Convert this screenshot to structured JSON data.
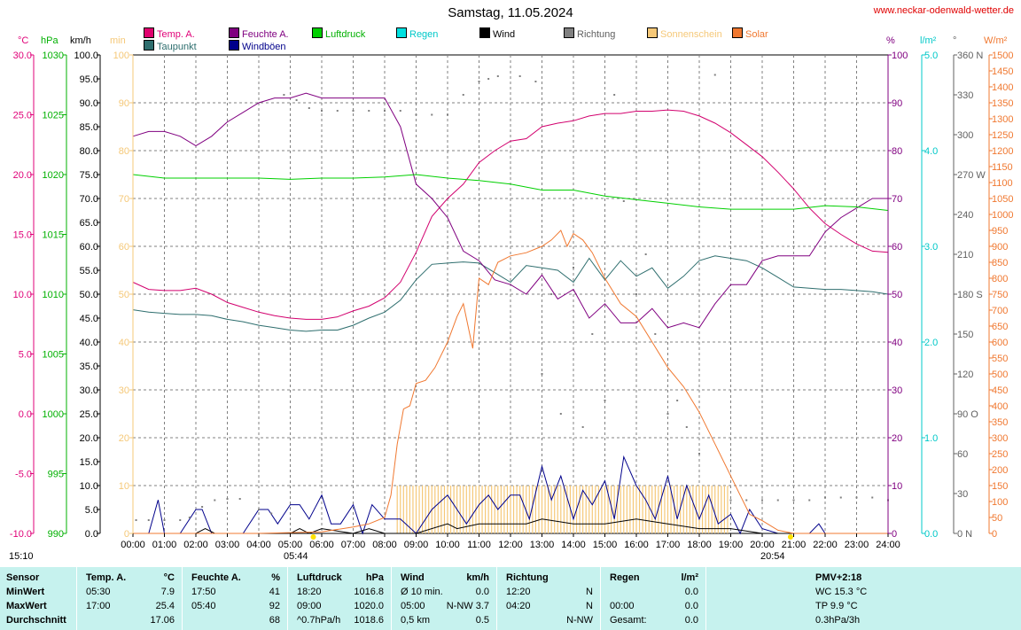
{
  "title": "Samstag, 11.05.2024",
  "site": "www.neckar-odenwald-wetter.de",
  "colors": {
    "temp": "#d2006e",
    "dew": "#2e6e6e",
    "humidity": "#800080",
    "gust": "#00008b",
    "pressure": "#00d000",
    "rain": "#00e0e0",
    "wind": "#000000",
    "direction": "#808080",
    "sunshine": "#f5c878",
    "solar": "#f07830",
    "grid": "#808080",
    "footer_bg": "#c6f2ee"
  },
  "legend": [
    {
      "label": "Temp. A.",
      "color": "#e0006e",
      "name": "legend-temp"
    },
    {
      "label": "Taupunkt",
      "color": "#2e6e6e",
      "name": "legend-dewpoint"
    },
    {
      "label": "Feuchte A.",
      "color": "#800080",
      "name": "legend-humidity"
    },
    {
      "label": "Windböen",
      "color": "#00008b",
      "name": "legend-gust"
    },
    {
      "label": "Luftdruck",
      "color": "#00d000",
      "name": "legend-pressure"
    },
    {
      "label": "Regen",
      "color": "#00e0e0",
      "name": "legend-rain"
    },
    {
      "label": "Wind",
      "color": "#000000",
      "name": "legend-wind"
    },
    {
      "label": "Richtung",
      "color": "#808080",
      "name": "legend-direction"
    },
    {
      "label": "Sonnenschein",
      "color": "#f5c878",
      "name": "legend-sunshine"
    },
    {
      "label": "Solar",
      "color": "#f07830",
      "name": "legend-solar"
    }
  ],
  "axis_headers": {
    "temp": "°C",
    "pressure": "hPa",
    "wind": "km/h",
    "sun": "min",
    "humidity": "%",
    "rain": "l/m²",
    "direction": "°",
    "solar": "W/m²"
  },
  "sun": {
    "sunrise": "05:44",
    "sunset": "20:54",
    "daylength": "15:10"
  },
  "chart_data": {
    "type": "line",
    "title": "Samstag, 11.05.2024",
    "x_label": "",
    "x_ticks": [
      "00:00",
      "01:00",
      "02:00",
      "03:00",
      "04:00",
      "05:00",
      "06:00",
      "07:00",
      "08:00",
      "09:00",
      "10:00",
      "11:00",
      "12:00",
      "13:00",
      "14:00",
      "15:00",
      "16:00",
      "17:00",
      "18:00",
      "19:00",
      "20:00",
      "21:00",
      "22:00",
      "23:00",
      "24:00"
    ],
    "axes": {
      "temp": {
        "unit": "°C",
        "range": [
          -10,
          30
        ],
        "ticks": [
          "30.0",
          "25.0",
          "20.0",
          "15.0",
          "10.0",
          "5.0",
          "0.0",
          "-5.0",
          "-10.0"
        ]
      },
      "pressure": {
        "unit": "hPa",
        "range": [
          990,
          1030
        ],
        "ticks": [
          "1030",
          "1025",
          "1020",
          "1015",
          "1010",
          "1005",
          "1000",
          "995",
          "990"
        ]
      },
      "wind": {
        "unit": "km/h",
        "range": [
          0,
          100
        ],
        "ticks": [
          "100.0",
          "95.0",
          "90.0",
          "85.0",
          "80.0",
          "75.0",
          "70.0",
          "65.0",
          "60.0",
          "55.0",
          "50.0",
          "45.0",
          "40.0",
          "35.0",
          "30.0",
          "25.0",
          "20.0",
          "15.0",
          "10.0",
          "5.0",
          "0.0"
        ]
      },
      "sun": {
        "unit": "min",
        "range": [
          0,
          100
        ],
        "ticks": [
          "100",
          "90",
          "80",
          "70",
          "60",
          "50",
          "40",
          "30",
          "20",
          "10",
          "0"
        ]
      },
      "humidity": {
        "unit": "%",
        "range": [
          0,
          100
        ],
        "ticks": [
          "100",
          "90",
          "80",
          "70",
          "60",
          "50",
          "40",
          "30",
          "20",
          "10",
          "0"
        ]
      },
      "rain": {
        "unit": "l/m²",
        "range": [
          0,
          5
        ],
        "ticks": [
          "5.0",
          "4.0",
          "3.0",
          "2.0",
          "1.0",
          "0.0"
        ]
      },
      "direction": {
        "unit": "°",
        "range": [
          0,
          360
        ],
        "ticks": [
          "360 N",
          "330",
          "300",
          "270 W",
          "240",
          "210",
          "180 S",
          "150",
          "120",
          "90 O",
          "60",
          "30",
          "0 N"
        ]
      },
      "solar": {
        "unit": "W/m²",
        "range": [
          0,
          1500
        ],
        "ticks": [
          "1500",
          "1450",
          "1400",
          "1350",
          "1300",
          "1250",
          "1200",
          "1150",
          "1100",
          "1050",
          "1000",
          "950",
          "900",
          "850",
          "800",
          "750",
          "700",
          "650",
          "600",
          "550",
          "500",
          "450",
          "400",
          "350",
          "300",
          "250",
          "200",
          "150",
          "100",
          "50",
          "0"
        ]
      }
    },
    "series": [
      {
        "name": "Temp. A.",
        "axis": "temp",
        "color": "#d2006e",
        "x": [
          0,
          0.5,
          1,
          1.5,
          2,
          2.5,
          3,
          3.5,
          4,
          4.5,
          5,
          5.5,
          6,
          6.5,
          7,
          7.5,
          8,
          8.5,
          9,
          9.5,
          10,
          10.5,
          11,
          11.5,
          12,
          12.5,
          13,
          13.5,
          14,
          14.5,
          15,
          15.5,
          16,
          16.5,
          17,
          17.5,
          18,
          18.5,
          19,
          19.5,
          20,
          20.5,
          21,
          21.5,
          22,
          22.5,
          23,
          23.5,
          24
        ],
        "y": [
          11.0,
          10.4,
          10.3,
          10.3,
          10.5,
          10.0,
          9.3,
          8.9,
          8.5,
          8.2,
          8.0,
          7.9,
          7.9,
          8.1,
          8.6,
          9.0,
          9.7,
          11.0,
          13.5,
          16.5,
          18.0,
          19.2,
          21.0,
          22.0,
          22.8,
          23.0,
          24.0,
          24.3,
          24.5,
          24.9,
          25.1,
          25.1,
          25.3,
          25.3,
          25.4,
          25.3,
          24.9,
          24.3,
          23.5,
          22.5,
          21.5,
          20.2,
          18.8,
          17.2,
          15.9,
          15.0,
          14.2,
          13.6,
          13.5
        ]
      },
      {
        "name": "Taupunkt",
        "axis": "temp",
        "color": "#2e6e6e",
        "x": [
          0,
          0.5,
          1,
          1.5,
          2,
          2.5,
          3,
          3.5,
          4,
          4.5,
          5,
          5.5,
          6,
          6.5,
          7,
          7.5,
          8,
          8.5,
          9,
          9.5,
          10,
          10.5,
          11,
          11.5,
          12,
          12.5,
          13,
          13.5,
          14,
          14.5,
          15,
          15.5,
          16,
          16.5,
          17,
          17.5,
          18,
          18.5,
          19,
          19.5,
          20,
          20.5,
          21,
          21.5,
          22,
          22.5,
          23,
          23.5,
          24
        ],
        "y": [
          8.7,
          8.5,
          8.4,
          8.3,
          8.3,
          8.2,
          7.9,
          7.7,
          7.4,
          7.2,
          7.0,
          6.9,
          7.0,
          7.0,
          7.4,
          8.0,
          8.5,
          9.5,
          11.2,
          12.5,
          12.6,
          12.7,
          12.6,
          11.8,
          11.0,
          12.4,
          12.2,
          12.0,
          11.0,
          13.0,
          11.2,
          12.8,
          11.5,
          12.2,
          10.5,
          11.5,
          12.8,
          13.2,
          13.0,
          12.8,
          12.2,
          11.4,
          10.6,
          10.5,
          10.4,
          10.4,
          10.3,
          10.2,
          10.0
        ]
      },
      {
        "name": "Feuchte A.",
        "axis": "humidity",
        "color": "#800080",
        "x": [
          0,
          0.5,
          1,
          1.5,
          2,
          2.5,
          3,
          3.5,
          4,
          4.5,
          5,
          5.5,
          6,
          6.5,
          7,
          7.5,
          8,
          8.5,
          9,
          9.5,
          10,
          10.5,
          11,
          11.5,
          12,
          12.5,
          13,
          13.5,
          14,
          14.5,
          15,
          15.5,
          16,
          16.5,
          17,
          17.5,
          18,
          18.5,
          19,
          19.5,
          20,
          20.5,
          21,
          21.5,
          22,
          22.5,
          23,
          23.5,
          24
        ],
        "y": [
          83,
          84,
          84,
          83,
          81,
          83,
          86,
          88,
          90,
          91,
          91,
          92,
          91,
          91,
          91,
          91,
          91,
          85,
          73,
          70,
          66,
          59,
          57,
          53,
          52,
          50,
          54,
          49,
          51,
          45,
          48,
          44,
          44,
          47,
          43,
          44,
          43,
          48,
          52,
          52,
          57,
          58,
          58,
          58,
          63,
          66,
          68,
          70,
          70
        ]
      },
      {
        "name": "Windböen",
        "axis": "wind",
        "color": "#00008b",
        "x": [
          0,
          0.5,
          0.8,
          1,
          1.2,
          1.5,
          2,
          2.2,
          2.5,
          3,
          3.5,
          4,
          4.3,
          4.6,
          5,
          5.3,
          5.6,
          6,
          6.3,
          6.6,
          7,
          7.3,
          7.6,
          8,
          8.5,
          9,
          9.5,
          10,
          10.3,
          10.6,
          11,
          11.3,
          11.6,
          12,
          12.3,
          12.6,
          13,
          13.3,
          13.6,
          14,
          14.3,
          14.6,
          15,
          15.3,
          15.6,
          16,
          16.3,
          16.6,
          17,
          17.3,
          17.6,
          18,
          18.3,
          18.6,
          19,
          19.3,
          19.6,
          20,
          20.5,
          21,
          21.5,
          21.8,
          22,
          22.5,
          23,
          24
        ],
        "y": [
          0,
          0,
          7,
          0,
          0,
          0,
          5,
          5,
          0,
          0,
          0,
          5,
          5,
          2,
          6,
          6,
          3,
          8,
          2,
          2,
          6,
          0,
          6,
          3,
          3,
          0,
          5,
          8,
          5,
          2,
          6,
          8,
          5,
          8,
          8,
          3,
          14,
          7,
          12,
          3,
          9,
          6,
          11,
          3,
          16,
          10,
          7,
          3,
          12,
          3,
          10,
          3,
          8,
          2,
          4,
          0,
          5,
          1,
          0,
          0,
          0,
          2,
          0,
          0,
          0,
          0
        ]
      },
      {
        "name": "Wind",
        "axis": "wind",
        "color": "#000000",
        "x": [
          0,
          2,
          2.3,
          2.6,
          4,
          5,
          5.3,
          5.6,
          6,
          7,
          7.5,
          8,
          9,
          10,
          10.3,
          11,
          12,
          12.5,
          13,
          14,
          15,
          16,
          17,
          18,
          19,
          20,
          24
        ],
        "y": [
          0,
          0,
          1,
          0,
          0,
          0,
          1,
          0,
          1,
          0,
          1,
          0,
          0,
          2,
          1,
          2,
          2,
          2,
          3,
          2,
          2,
          3,
          2,
          1,
          1,
          0,
          0
        ]
      },
      {
        "name": "Luftdruck",
        "axis": "pressure",
        "color": "#00d000",
        "x": [
          0,
          1,
          2,
          3,
          4,
          5,
          6,
          7,
          8,
          9,
          10,
          11,
          12,
          13,
          14,
          15,
          16,
          17,
          18,
          19,
          20,
          21,
          22,
          23,
          24
        ],
        "y": [
          1020.0,
          1019.7,
          1019.7,
          1019.7,
          1019.7,
          1019.6,
          1019.7,
          1019.7,
          1019.8,
          1020.0,
          1019.7,
          1019.5,
          1019.2,
          1018.7,
          1018.7,
          1018.2,
          1017.9,
          1017.6,
          1017.3,
          1017.1,
          1017.1,
          1017.1,
          1017.4,
          1017.3,
          1017.0
        ]
      },
      {
        "name": "Solar",
        "axis": "solar",
        "color": "#f07830",
        "x": [
          0,
          4,
          6,
          7,
          7.5,
          8,
          8.2,
          8.4,
          8.6,
          8.8,
          9,
          9.3,
          9.6,
          10,
          10.3,
          10.5,
          10.8,
          11,
          11.3,
          11.6,
          12,
          12.5,
          13,
          13.3,
          13.6,
          13.8,
          14,
          14.3,
          14.6,
          15,
          15.5,
          16,
          16.5,
          17,
          17.5,
          18,
          18.5,
          19,
          19.3,
          19.6,
          20,
          20.5,
          21,
          24
        ],
        "y": [
          0,
          0,
          5,
          20,
          30,
          50,
          120,
          280,
          390,
          400,
          470,
          480,
          520,
          600,
          680,
          720,
          580,
          800,
          780,
          850,
          870,
          880,
          900,
          920,
          950,
          900,
          940,
          920,
          880,
          800,
          720,
          680,
          600,
          520,
          460,
          380,
          280,
          180,
          120,
          60,
          40,
          10,
          0,
          0
        ]
      },
      {
        "name": "Sonnenschein",
        "axis": "sun",
        "color": "#f5c878",
        "x": [
          8.4,
          19.0
        ],
        "y": [
          10,
          10
        ]
      },
      {
        "name": "Richtung",
        "axis": "direction",
        "color": "#808080",
        "x": [
          0.1,
          0.5,
          1.0,
          1.5,
          1.8,
          2.2,
          2.6,
          3.0,
          3.4,
          4.0,
          4.4,
          4.8,
          5.2,
          5.6,
          6.0,
          6.5,
          7.0,
          7.5,
          8.0,
          8.5,
          9.0,
          9.5,
          10.0,
          10.5,
          11.0,
          11.3,
          11.6,
          12.3,
          12.8,
          13.0,
          13.3,
          13.6,
          14.0,
          14.3,
          14.6,
          15.0,
          15.3,
          15.6,
          16.0,
          16.3,
          16.6,
          17.0,
          17.3,
          17.6,
          18.0,
          18.5,
          19.0,
          19.5,
          20.0,
          20.5,
          21.0,
          21.5,
          22.0,
          22.5,
          23.0,
          23.5,
          24.0
        ],
        "y": [
          10,
          10,
          10,
          10,
          12,
          20,
          25,
          26,
          26,
          18,
          15,
          330,
          326,
          320,
          318,
          318,
          318,
          318,
          318,
          318,
          315,
          315,
          315,
          330,
          340,
          342,
          344,
          344,
          340,
          120,
          180,
          90,
          200,
          80,
          150,
          100,
          330,
          250,
          180,
          210,
          150,
          90,
          100,
          80,
          60,
          345,
          25,
          25,
          25,
          25,
          25,
          25,
          27,
          27,
          27,
          27,
          25
        ]
      }
    ]
  },
  "footer": {
    "columns": [
      {
        "name": "sensor",
        "header": [
          "Sensor",
          ""
        ],
        "rows": [
          [
            "MinWert",
            ""
          ],
          [
            "MaxWert",
            ""
          ],
          [
            "Durchschnitt",
            ""
          ]
        ]
      },
      {
        "name": "temperature",
        "header": [
          "Temp. A.",
          "°C"
        ],
        "rows": [
          [
            "05:30",
            "7.9"
          ],
          [
            "17:00",
            "25.4"
          ],
          [
            "",
            "17.06"
          ]
        ]
      },
      {
        "name": "humidity",
        "header": [
          "Feuchte A.",
          "%"
        ],
        "rows": [
          [
            "17:50",
            "41"
          ],
          [
            "05:40",
            "92"
          ],
          [
            "",
            "68"
          ]
        ]
      },
      {
        "name": "pressure",
        "header": [
          "Luftdruck",
          "hPa"
        ],
        "rows": [
          [
            "18:20",
            "1016.8"
          ],
          [
            "09:00",
            "1020.0"
          ],
          [
            "^0.7hPa/h",
            "1018.6"
          ]
        ]
      },
      {
        "name": "wind",
        "header": [
          "Wind",
          "km/h"
        ],
        "rows": [
          [
            "Ø 10 min.",
            "0.0"
          ],
          [
            "05:00",
            "N-NW 3.7"
          ],
          [
            "0,5 km",
            "0.5"
          ]
        ]
      },
      {
        "name": "direction",
        "header": [
          "Richtung",
          ""
        ],
        "rows": [
          [
            "12:20",
            "N"
          ],
          [
            "04:20",
            "N"
          ],
          [
            "",
            "N-NW"
          ]
        ]
      },
      {
        "name": "rain",
        "header": [
          "Regen",
          "l/m²"
        ],
        "rows": [
          [
            "",
            "0.0"
          ],
          [
            "00:00",
            "0.0"
          ],
          [
            "Gesamt:",
            "0.0"
          ]
        ]
      },
      {
        "name": "extra",
        "header": [
          "",
          "PMV+2:18"
        ],
        "rows": [
          [
            "",
            "WC 15.3 °C"
          ],
          [
            "",
            "TP 9.9 °C"
          ],
          [
            "",
            "0.3hPa/3h"
          ]
        ]
      }
    ]
  }
}
